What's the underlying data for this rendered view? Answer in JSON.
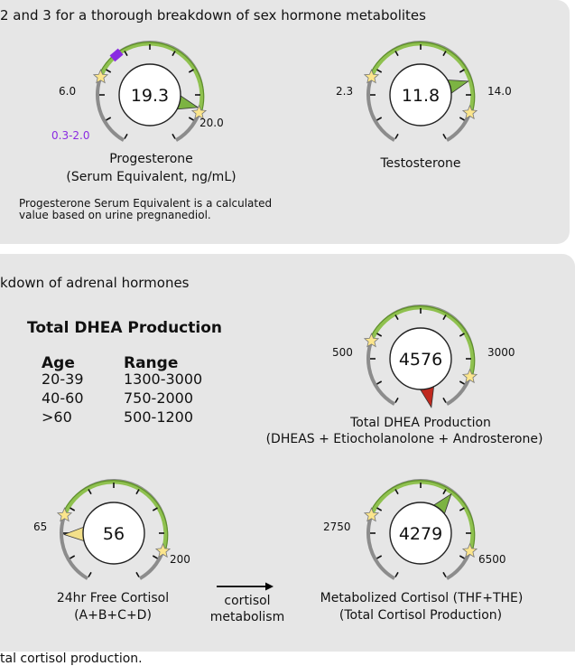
{
  "top_section": {
    "intro": "2 and 3 for a thorough breakdown of sex hormone metabolites",
    "progesterone": {
      "value": "19.3",
      "low": "6.0",
      "high": "20.0",
      "secondary_range": "0.3-2.0",
      "title": "Progesterone",
      "subtitle": "(Serum Equivalent, ng/mL)",
      "pointer_fraction": 0.97,
      "pointer_color": "#7cb342"
    },
    "testosterone": {
      "value": "11.8",
      "low": "2.3",
      "high": "14.0",
      "title": "Testosterone",
      "pointer_fraction": 0.8,
      "pointer_color": "#7cb342"
    },
    "note_line1": "Progesterone Serum Equivalent is a calculated",
    "note_line2": "value based on urine pregnanediol."
  },
  "bottom_section": {
    "intro": "kdown of adrenal hormones",
    "dhea_table": {
      "title": "Total DHEA Production",
      "col_age": "Age",
      "col_range": "Range",
      "rows": [
        {
          "age": "20-39",
          "range": "1300-3000"
        },
        {
          "age": "40-60",
          "range": "750-2000"
        },
        {
          "age": ">60",
          "range": "500-1200"
        }
      ]
    },
    "dhea_gauge": {
      "value": "4576",
      "low": "500",
      "high": "3000",
      "title": "Total DHEA Production",
      "subtitle": "(DHEAS + Etiocholanolone + Androsterone)",
      "pointer_fraction": 1.32,
      "pointer_color": "#c0281e"
    },
    "free_cortisol": {
      "value": "56",
      "low": "65",
      "high": "200",
      "title": "24hr Free Cortisol",
      "subtitle": "(A+B+C+D)",
      "pointer_fraction": -0.12,
      "pointer_color": "#f3e08a"
    },
    "arrow_label_line1": "cortisol",
    "arrow_label_line2": "metabolism",
    "metabolized_cortisol": {
      "value": "4279",
      "low": "2750",
      "high": "6500",
      "title": "Metabolized Cortisol (THF+THE)",
      "subtitle": "(Total Cortisol Production)",
      "pointer_fraction": 0.6,
      "pointer_color": "#7cb342"
    },
    "footer_partial": "tal cortisol production."
  }
}
